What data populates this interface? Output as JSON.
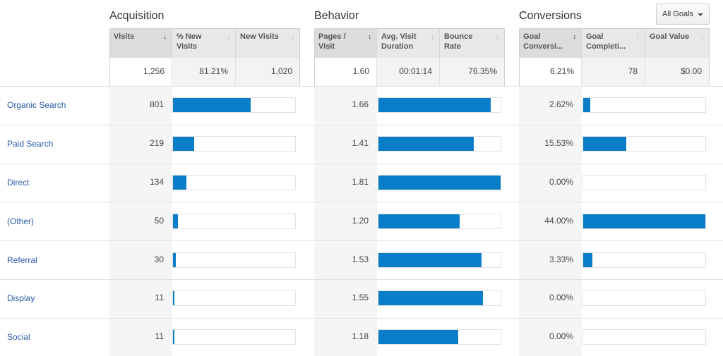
{
  "groups": {
    "acquisition": "Acquisition",
    "behavior": "Behavior",
    "conversions": "Conversions"
  },
  "goals_select": {
    "label": "All Goals"
  },
  "columns": {
    "visits": "Visits",
    "new_visits_pct": "% New Visits",
    "new_visits": "New Visits",
    "pages_visit": "Pages / Visit",
    "avg_duration": "Avg. Visit Duration",
    "bounce_rate": "Bounce Rate",
    "goal_conv": "Goal Conversi...",
    "goal_compl": "Goal Completi...",
    "goal_value": "Goal Value"
  },
  "sort_icons": {
    "active": "↓",
    "inactive": "↕"
  },
  "totals": {
    "visits": "1,256",
    "new_visits_pct": "81.21%",
    "new_visits": "1,020",
    "pages_visit": "1.60",
    "avg_duration": "00:01:14",
    "bounce_rate": "76.35%",
    "goal_conv": "6.21%",
    "goal_compl": "78",
    "goal_value": "$0.00"
  },
  "rows": [
    {
      "label": "Organic Search",
      "visits": "801",
      "visits_pct": 63.8,
      "pages": "1.66",
      "pages_pct": 91.7,
      "conv": "2.62%",
      "conv_pct": 6.0
    },
    {
      "label": "Paid Search",
      "visits": "219",
      "visits_pct": 17.4,
      "pages": "1.41",
      "pages_pct": 77.9,
      "conv": "15.53%",
      "conv_pct": 35.3
    },
    {
      "label": "Direct",
      "visits": "134",
      "visits_pct": 10.7,
      "pages": "1.81",
      "pages_pct": 100,
      "conv": "0.00%",
      "conv_pct": 0
    },
    {
      "label": "(Other)",
      "visits": "50",
      "visits_pct": 4.0,
      "pages": "1.20",
      "pages_pct": 66.3,
      "conv": "44.00%",
      "conv_pct": 100
    },
    {
      "label": "Referral",
      "visits": "30",
      "visits_pct": 2.4,
      "pages": "1.53",
      "pages_pct": 84.5,
      "conv": "3.33%",
      "conv_pct": 7.6
    },
    {
      "label": "Display",
      "visits": "11",
      "visits_pct": 0.9,
      "pages": "1.55",
      "pages_pct": 85.6,
      "conv": "0.00%",
      "conv_pct": 0
    },
    {
      "label": "Social",
      "visits": "11",
      "visits_pct": 0.9,
      "pages": "1.18",
      "pages_pct": 65.2,
      "conv": "0.00%",
      "conv_pct": 0
    }
  ],
  "colors": {
    "bar": "#0a7dc9",
    "link": "#2b5ba8"
  }
}
